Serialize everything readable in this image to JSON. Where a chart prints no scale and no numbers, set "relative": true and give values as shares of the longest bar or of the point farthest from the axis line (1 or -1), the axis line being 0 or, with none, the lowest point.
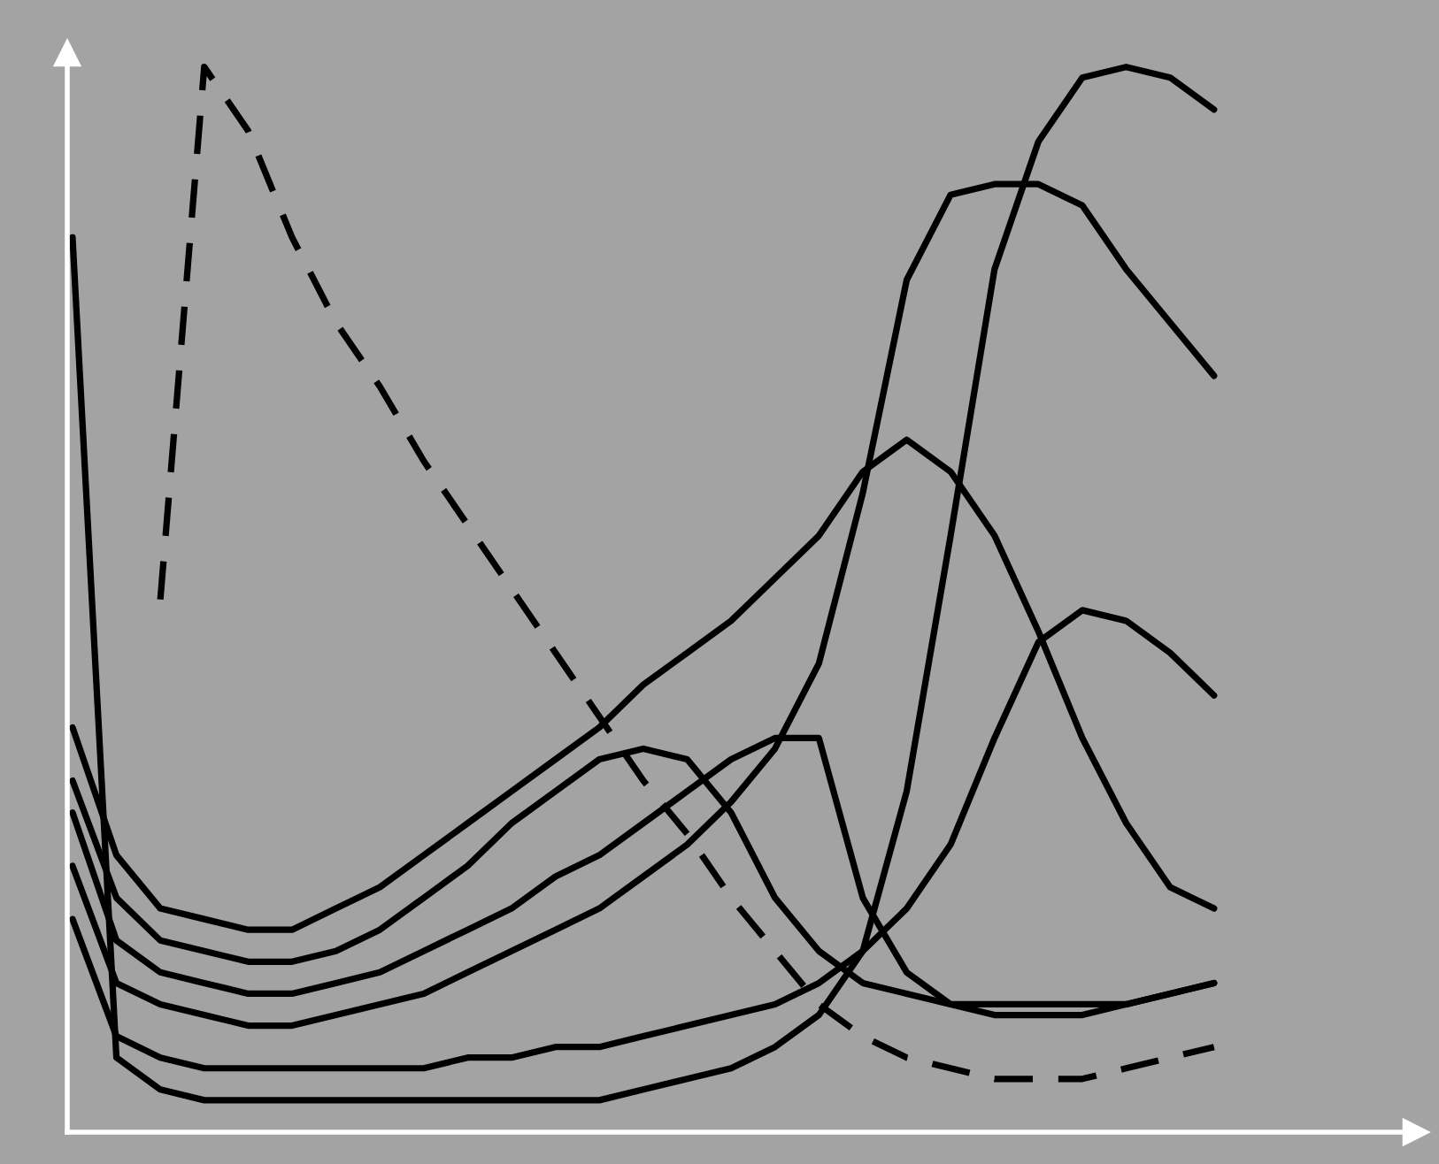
{
  "chart_data": {
    "type": "line",
    "relative": true,
    "categories": [
      null,
      null,
      null,
      null,
      null,
      null,
      null,
      null,
      null,
      null,
      null,
      null,
      null,
      null,
      null,
      null,
      null,
      null,
      null,
      null,
      null,
      null,
      null,
      null,
      null,
      null,
      null
    ],
    "series": [
      {
        "color": "#000000",
        "line_style": "solid",
        "values": [
          0.84,
          0.07,
          0.04,
          0.03,
          0.03,
          0.03,
          0.03,
          0.03,
          0.03,
          0.03,
          0.03,
          0.03,
          0.03,
          0.04,
          0.05,
          0.06,
          0.08,
          0.11,
          0.17,
          0.32,
          0.56,
          0.81,
          0.93,
          0.99,
          1.0,
          0.99,
          0.96
        ]
      },
      {
        "color": "#000000",
        "line_style": "dashed",
        "values": [
          null,
          null,
          0.5,
          1.0,
          0.94,
          0.84,
          0.76,
          0.7,
          0.63,
          0.57,
          0.51,
          0.45,
          0.39,
          0.33,
          0.28,
          0.22,
          0.17,
          0.12,
          0.09,
          0.07,
          0.06,
          0.05,
          0.05,
          0.05,
          0.06,
          0.07,
          0.08
        ]
      },
      {
        "color": "#000000",
        "line_style": "solid",
        "values": [
          0.38,
          0.26,
          0.21,
          0.2,
          0.19,
          0.19,
          0.21,
          0.23,
          0.26,
          0.29,
          0.32,
          0.35,
          0.38,
          0.42,
          0.45,
          0.48,
          0.52,
          0.56,
          0.62,
          0.65,
          0.62,
          0.56,
          0.47,
          0.37,
          0.29,
          0.23,
          0.21
        ]
      },
      {
        "color": "#000000",
        "line_style": "solid",
        "values": [
          0.33,
          0.22,
          0.18,
          0.17,
          0.16,
          0.16,
          0.17,
          0.19,
          0.22,
          0.25,
          0.29,
          0.32,
          0.35,
          0.36,
          0.35,
          0.3,
          0.22,
          0.17,
          0.14,
          0.13,
          0.12,
          0.12,
          0.12,
          0.12,
          0.12,
          0.13,
          0.14
        ]
      },
      {
        "color": "#000000",
        "line_style": "solid",
        "values": [
          0.3,
          0.18,
          0.15,
          0.14,
          0.13,
          0.13,
          0.14,
          0.15,
          0.17,
          0.19,
          0.21,
          0.24,
          0.26,
          0.29,
          0.32,
          0.35,
          0.37,
          0.37,
          0.22,
          0.15,
          0.12,
          0.11,
          0.11,
          0.11,
          0.12,
          0.13,
          0.14
        ]
      },
      {
        "color": "#000000",
        "line_style": "solid",
        "values": [
          0.25,
          0.14,
          0.12,
          0.11,
          0.1,
          0.1,
          0.11,
          0.12,
          0.13,
          0.15,
          0.17,
          0.19,
          0.21,
          0.24,
          0.27,
          0.31,
          0.36,
          0.44,
          0.6,
          0.8,
          0.88,
          0.89,
          0.89,
          0.87,
          0.81,
          0.76,
          0.71
        ]
      },
      {
        "color": "#000000",
        "line_style": "solid",
        "values": [
          0.2,
          0.09,
          0.07,
          0.06,
          0.06,
          0.06,
          0.06,
          0.06,
          0.06,
          0.07,
          0.07,
          0.08,
          0.08,
          0.09,
          0.1,
          0.11,
          0.12,
          0.14,
          0.17,
          0.21,
          0.27,
          0.37,
          0.46,
          0.49,
          0.48,
          0.45,
          0.41
        ]
      }
    ]
  }
}
